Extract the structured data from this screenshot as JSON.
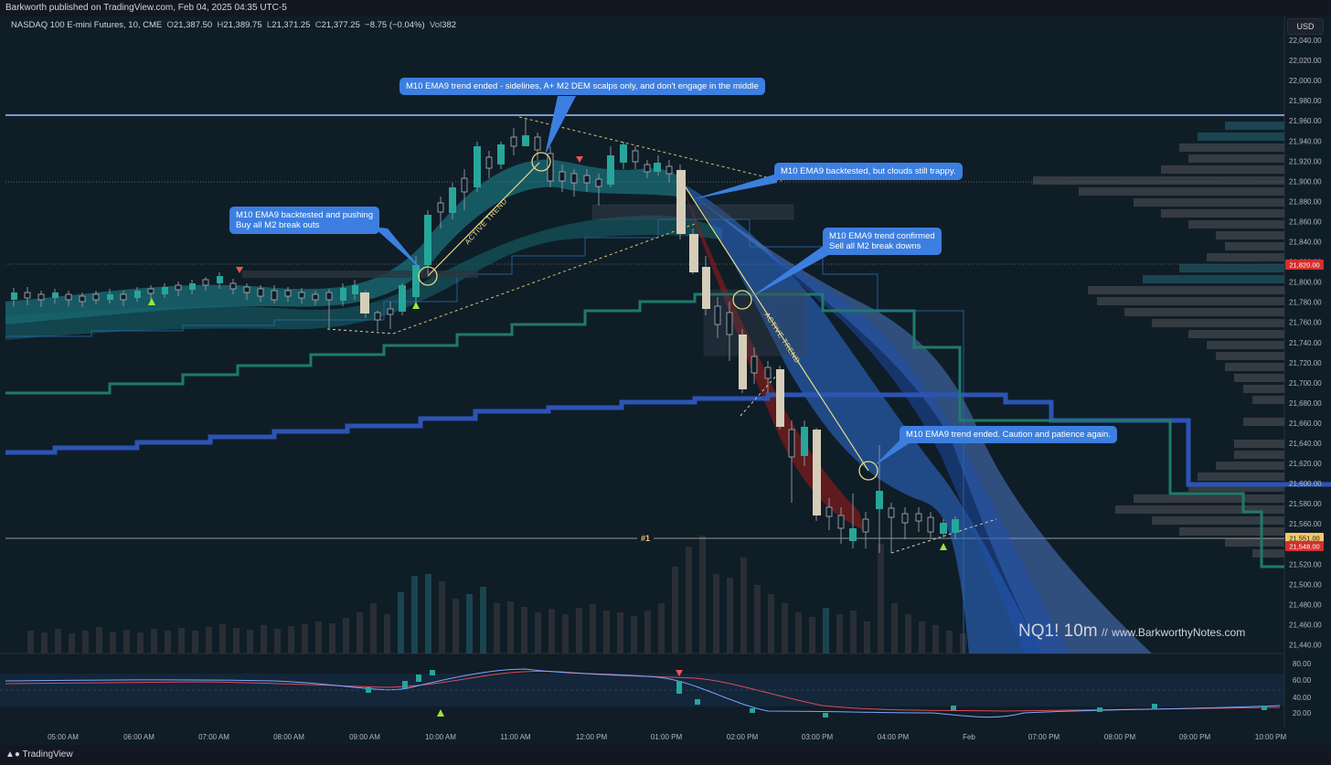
{
  "header": {
    "published": "Barkworth published on TradingView.com, Feb 04, 2025 04:35 UTC-5"
  },
  "legend": {
    "instrument": "NASDAQ 100 E-mini Futures, 10, CME",
    "o_label": "O",
    "o_value": "21,387.50",
    "h_label": "H",
    "h_value": "21,389.75",
    "l_label": "L",
    "l_value": "21,371.25",
    "c_label": "C",
    "c_value": "21,377.25",
    "change": "−8.75 (−0.04%)",
    "vol_label": "Vol",
    "vol_value": "382"
  },
  "currency_button": "USD",
  "price_axis": [
    "22,040.00",
    "22,020.00",
    "22,000.00",
    "21,980.00",
    "21,960.00",
    "21,940.00",
    "21,920.00",
    "21,900.00",
    "21,880.00",
    "21,860.00",
    "21,840.00",
    "21,820.00",
    "21,800.00",
    "21,780.00",
    "21,760.00",
    "21,740.00",
    "21,720.00",
    "21,700.00",
    "21,680.00",
    "21,660.00",
    "21,640.00",
    "21,620.00",
    "21,600.00",
    "21,580.00",
    "21,560.00",
    "21,540.00",
    "21,520.00",
    "21,500.00",
    "21,480.00",
    "21,460.00",
    "21,440.00"
  ],
  "price_markers": {
    "red": "21,820.00",
    "last": "21,551.00",
    "red2": "21,548.00"
  },
  "oscillator_axis": [
    "80.00",
    "60.00",
    "40.00",
    "20.00"
  ],
  "time_axis": [
    "05:00 AM",
    "06:00 AM",
    "07:00 AM",
    "08:00 AM",
    "09:00 AM",
    "10:00 AM",
    "11:00 AM",
    "12:00 PM",
    "01:00 PM",
    "02:00 PM",
    "03:00 PM",
    "04:00 PM",
    "Feb",
    "07:00 PM",
    "08:00 PM",
    "09:00 PM",
    "10:00 PM"
  ],
  "annotations": {
    "callout_top": "M10 EMA9 trend ended - sidelines, A+ M2 DEM scalps only, and don't engage in the middle",
    "callout_left_1": "M10 EMA9 backtested and pushing",
    "callout_left_2": "Buy all M2 break outs",
    "callout_mid": "M10 EMA9 backtested, but clouds still trappy.",
    "callout_right_1": "M10 EMA9 trend confirmed",
    "callout_right_2": "Sell all M2 break downs",
    "callout_bottom": "M10 EMA9 trend ended. Caution and patience again.",
    "active_trend": "ACTIVE TREND",
    "level_marker": "#1"
  },
  "watermark": {
    "symbol": "NQ1! 10m",
    "sep": "//",
    "site": "www.BarkworthyNotes.com"
  },
  "footer": {
    "brand": "TradingView"
  },
  "colors": {
    "background": "#0f1d27",
    "callout": "#3c7fe0",
    "bull_candle": "#26a69a",
    "bear_candle": "#d6cdb8",
    "cloud_teal": "#1f8a96",
    "cloud_blue": "#2f6fd6",
    "level_line": "#9fc4ff"
  }
}
